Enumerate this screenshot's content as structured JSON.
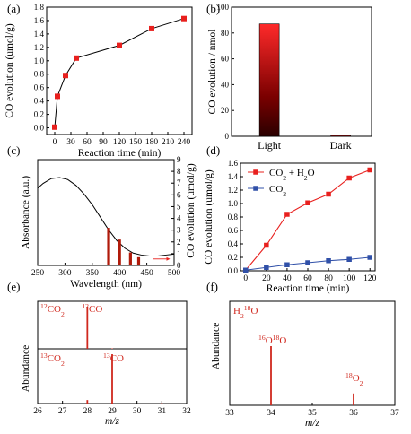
{
  "chart_data": [
    {
      "panel": "(a)",
      "type": "line",
      "xlabel": "Reaction time (min)",
      "ylabel": "CO evolution (umol/g)",
      "xlim": [
        -15,
        255
      ],
      "ylim": [
        -0.1,
        1.8
      ],
      "xticks": [
        "0",
        "30",
        "60",
        "90",
        "120",
        "150",
        "180",
        "210",
        "240"
      ],
      "yticks": [
        "0.0",
        "0.2",
        "0.4",
        "0.6",
        "0.8",
        "1.0",
        "1.2",
        "1.4",
        "1.6",
        "1.8"
      ],
      "x": [
        0,
        5,
        20,
        40,
        120,
        180,
        240
      ],
      "y": [
        0.01,
        0.47,
        0.78,
        1.04,
        1.23,
        1.48,
        1.63
      ],
      "marker_color": "#e8201e"
    },
    {
      "panel": "(b)",
      "type": "bar",
      "ylabel": "CO evolution / nmol",
      "ylim": [
        0,
        100
      ],
      "yticks": [
        "0",
        "20",
        "40",
        "60",
        "80",
        "100"
      ],
      "categories": [
        "Light",
        "Dark"
      ],
      "values": [
        87,
        0.8
      ],
      "gradient": [
        "#ff2a2a",
        "#7a0000",
        "#2a0000"
      ]
    },
    {
      "panel": "(c)",
      "type": "line",
      "xlabel": "Wavelength (nm)",
      "ylabel": "Absorbance (a.u.)",
      "ylabel_right": "CO evolution (umol/g)",
      "xlim": [
        250,
        500
      ],
      "xticks": [
        "250",
        "300",
        "350",
        "400",
        "450",
        "500"
      ],
      "yticks_right": [
        "0",
        "1",
        "2",
        "3",
        "4",
        "5",
        "6",
        "7",
        "8",
        "9"
      ],
      "ylim_right": [
        0,
        9
      ],
      "absorbance_x": [
        250,
        260,
        275,
        290,
        305,
        320,
        335,
        350,
        365,
        380,
        395,
        410,
        425,
        440,
        455,
        470,
        485,
        500
      ],
      "absorbance_y": [
        0.76,
        0.81,
        0.86,
        0.87,
        0.85,
        0.79,
        0.7,
        0.59,
        0.46,
        0.33,
        0.22,
        0.14,
        0.09,
        0.07,
        0.06,
        0.06,
        0.07,
        0.08
      ],
      "bars_x": [
        380,
        400,
        420,
        435
      ],
      "bars_y": [
        3.2,
        2.2,
        1.1,
        0.7
      ],
      "bar_color": "#b01a0a",
      "arrow_color": "#e8201e"
    },
    {
      "panel": "(d)",
      "type": "line",
      "xlabel": "Reaction time (min)",
      "ylabel": "CO evolution (umol/g)",
      "xlim": [
        -5,
        125
      ],
      "ylim": [
        0,
        1.6
      ],
      "xticks": [
        "0",
        "20",
        "40",
        "60",
        "80",
        "100",
        "120"
      ],
      "yticks": [
        "0.0",
        "0.2",
        "0.4",
        "0.6",
        "0.8",
        "1.0",
        "1.2",
        "1.4",
        "1.6"
      ],
      "legend_position": "top-left",
      "series": [
        {
          "name": "CO2 + H2O",
          "color": "#e8201e",
          "x": [
            0,
            20,
            40,
            60,
            80,
            100,
            120
          ],
          "y": [
            0.01,
            0.38,
            0.84,
            1.01,
            1.14,
            1.38,
            1.5
          ]
        },
        {
          "name": "CO2",
          "color": "#3050a8",
          "x": [
            0,
            20,
            40,
            60,
            80,
            100,
            120
          ],
          "y": [
            0.01,
            0.05,
            0.09,
            0.12,
            0.15,
            0.17,
            0.2
          ]
        }
      ]
    },
    {
      "panel": "(e)",
      "type": "bar",
      "xlabel": "m/z",
      "ylabel": "Abundance",
      "xlim": [
        26,
        32
      ],
      "xticks": [
        "26",
        "27",
        "28",
        "29",
        "30",
        "31",
        "32"
      ],
      "top_trace": {
        "label": "12CO2",
        "peak_label": "12CO",
        "peaks_x": [
          28,
          29
        ],
        "peaks_y": [
          1.0,
          0.01
        ]
      },
      "bottom_trace": {
        "label": "13CO2",
        "peak_label": "13CO",
        "peaks_x": [
          28,
          29,
          31
        ],
        "peaks_y": [
          0.07,
          1.0,
          0.01
        ]
      },
      "color": "#d0281e"
    },
    {
      "panel": "(f)",
      "type": "bar",
      "xlabel": "m/z",
      "ylabel": "Abundance",
      "xlim": [
        33,
        37
      ],
      "xticks": [
        "33",
        "34",
        "35",
        "36",
        "37"
      ],
      "trace_label": "H218O",
      "peaks_x": [
        34,
        36
      ],
      "peaks_y": [
        1.0,
        0.2
      ],
      "peak_labels": [
        "16O18O",
        "18O2"
      ],
      "color": "#d0281e"
    }
  ]
}
